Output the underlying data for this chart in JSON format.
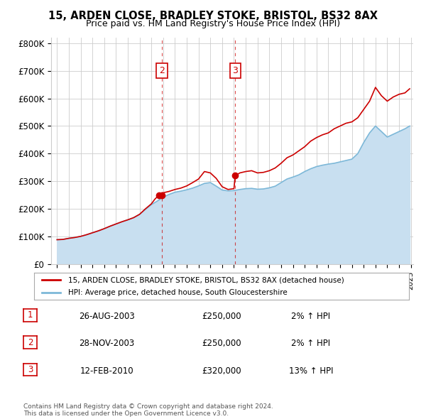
{
  "title": "15, ARDEN CLOSE, BRADLEY STOKE, BRISTOL, BS32 8AX",
  "subtitle": "Price paid vs. HM Land Registry's House Price Index (HPI)",
  "ylabel_ticks": [
    "£0",
    "£100K",
    "£200K",
    "£300K",
    "£400K",
    "£500K",
    "£600K",
    "£700K",
    "£800K"
  ],
  "ytick_values": [
    0,
    100000,
    200000,
    300000,
    400000,
    500000,
    600000,
    700000,
    800000
  ],
  "ylim": [
    0,
    820000
  ],
  "legend_label_red": "15, ARDEN CLOSE, BRADLEY STOKE, BRISTOL, BS32 8AX (detached house)",
  "legend_label_blue": "HPI: Average price, detached house, South Gloucestershire",
  "transactions": [
    {
      "num": 1,
      "date": "26-AUG-2003",
      "price": "£250,000",
      "hpi": "2% ↑ HPI",
      "year": 2003.65,
      "value": 250000,
      "show_vline": false
    },
    {
      "num": 2,
      "date": "28-NOV-2003",
      "price": "£250,000",
      "hpi": "2% ↑ HPI",
      "year": 2003.9,
      "value": 250000,
      "show_vline": true
    },
    {
      "num": 3,
      "date": "12-FEB-2010",
      "price": "£320,000",
      "hpi": "13% ↑ HPI",
      "year": 2010.12,
      "value": 320000,
      "show_vline": true
    }
  ],
  "footer": "Contains HM Land Registry data © Crown copyright and database right 2024.\nThis data is licensed under the Open Government Licence v3.0.",
  "hpi_color": "#7db8d8",
  "hpi_fill_color": "#c8dff0",
  "price_color": "#cc0000",
  "vline_color": "#cc0000",
  "grid_color": "#cccccc",
  "bg_color": "#ffffff",
  "years_hpi": [
    1995,
    1995.5,
    1996,
    1996.5,
    1997,
    1997.5,
    1998,
    1998.5,
    1999,
    1999.5,
    2000,
    2000.5,
    2001,
    2001.5,
    2002,
    2002.5,
    2003,
    2003.5,
    2004,
    2004.5,
    2005,
    2005.5,
    2006,
    2006.5,
    2007,
    2007.5,
    2008,
    2008.5,
    2009,
    2009.5,
    2010,
    2010.5,
    2011,
    2011.5,
    2012,
    2012.5,
    2013,
    2013.5,
    2014,
    2014.5,
    2015,
    2015.5,
    2016,
    2016.5,
    2017,
    2017.5,
    2018,
    2018.5,
    2019,
    2019.5,
    2020,
    2020.5,
    2021,
    2021.5,
    2022,
    2022.5,
    2023,
    2023.5,
    2024,
    2024.5,
    2024.9
  ],
  "hpi_values": [
    88000,
    89000,
    93000,
    96000,
    100000,
    106000,
    113000,
    120000,
    128000,
    137000,
    145000,
    153000,
    160000,
    168000,
    180000,
    198000,
    215000,
    228000,
    242000,
    252000,
    260000,
    264000,
    269000,
    275000,
    283000,
    292000,
    295000,
    282000,
    268000,
    265000,
    266000,
    270000,
    273000,
    274000,
    271000,
    272000,
    276000,
    282000,
    295000,
    308000,
    315000,
    323000,
    335000,
    345000,
    353000,
    358000,
    362000,
    365000,
    370000,
    375000,
    380000,
    400000,
    440000,
    475000,
    500000,
    480000,
    460000,
    470000,
    480000,
    490000,
    500000
  ],
  "years_price": [
    1995,
    1995.5,
    1996,
    1996.5,
    1997,
    1997.5,
    1998,
    1998.5,
    1999,
    1999.5,
    2000,
    2000.5,
    2001,
    2001.5,
    2002,
    2002.5,
    2003,
    2003.3,
    2003.65,
    2003.9,
    2004,
    2004.5,
    2005,
    2005.5,
    2006,
    2006.5,
    2007,
    2007.5,
    2008,
    2008.5,
    2009,
    2009.5,
    2010,
    2010.12,
    2010.5,
    2011,
    2011.5,
    2012,
    2012.5,
    2013,
    2013.5,
    2014,
    2014.5,
    2015,
    2015.5,
    2016,
    2016.5,
    2017,
    2017.5,
    2018,
    2018.5,
    2019,
    2019.5,
    2020,
    2020.5,
    2021,
    2021.5,
    2022,
    2022.5,
    2023,
    2023.5,
    2024,
    2024.5,
    2024.9
  ],
  "price_values": [
    88000,
    89000,
    93000,
    96000,
    100000,
    106000,
    113000,
    120000,
    128000,
    137000,
    145000,
    153000,
    160000,
    168000,
    180000,
    200000,
    218000,
    235000,
    250000,
    250000,
    258000,
    263000,
    270000,
    275000,
    283000,
    295000,
    308000,
    335000,
    330000,
    310000,
    280000,
    270000,
    273000,
    320000,
    330000,
    335000,
    338000,
    330000,
    332000,
    338000,
    348000,
    365000,
    385000,
    395000,
    410000,
    425000,
    445000,
    458000,
    468000,
    475000,
    490000,
    500000,
    510000,
    515000,
    530000,
    560000,
    590000,
    640000,
    610000,
    590000,
    605000,
    615000,
    620000,
    635000
  ]
}
